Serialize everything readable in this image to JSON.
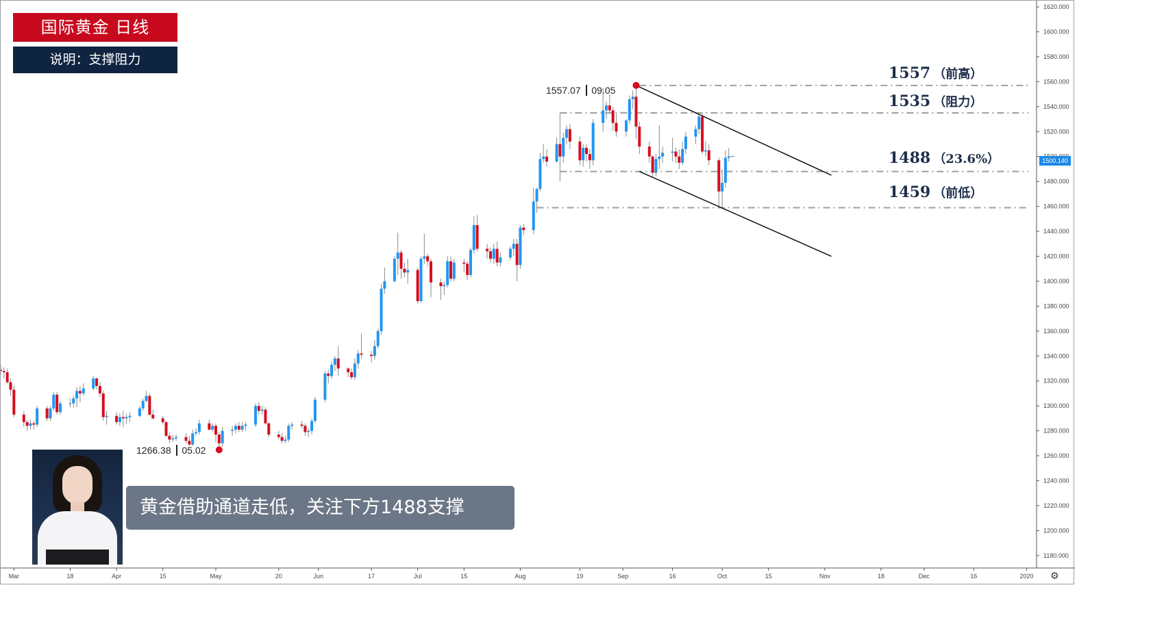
{
  "header": {
    "title": "国际黄金 日线",
    "subtitle": "说明：支撑阻力"
  },
  "levels": [
    {
      "value": 1557,
      "label": "1557",
      "tag": "（前高）"
    },
    {
      "value": 1535,
      "label": "1535",
      "tag": "（阻力）"
    },
    {
      "value": 1488,
      "label": "1488",
      "tag": "（23.6%）"
    },
    {
      "value": 1459,
      "label": "1459",
      "tag": "（前低）"
    }
  ],
  "annotations": {
    "high": {
      "price": "1557.07",
      "date": "09.05"
    },
    "low": {
      "price": "1266.38",
      "date": "05.02"
    }
  },
  "caption": "黄金借助通道走低，关注下方1488支撑",
  "current_price": "1500.140",
  "colors": {
    "up": "#2196f3",
    "down": "#d50f1f",
    "level_line": "#9e9e9e",
    "marker": "#d50f1f"
  },
  "icons": {
    "settings": "gear-icon"
  },
  "chart_data": {
    "type": "candlestick",
    "title": "国际黄金 日线",
    "ylim": [
      1170,
      1625
    ],
    "y_ticks": [
      "1620.000",
      "1600.000",
      "1580.000",
      "1560.000",
      "1540.000",
      "1520.000",
      "1500.000",
      "1480.000",
      "1460.000",
      "1440.000",
      "1420.000",
      "1400.000",
      "1380.000",
      "1360.000",
      "1340.000",
      "1320.000",
      "1300.000",
      "1280.000",
      "1260.000",
      "1240.000",
      "1220.000",
      "1200.000",
      "1180.000"
    ],
    "x_ticks": [
      "Mar",
      "18",
      "Apr",
      "15",
      "May",
      "20",
      "Jun",
      "17",
      "Jul",
      "15",
      "Aug",
      "19",
      "Sep",
      "16",
      "Oct",
      "15",
      "Nov",
      "18",
      "Dec",
      "16",
      "2020"
    ],
    "x_range": [
      "2019-02-25",
      "2020-01-04"
    ],
    "x_tick_dates": [
      "2019-03-01",
      "2019-03-18",
      "2019-04-01",
      "2019-04-15",
      "2019-05-01",
      "2019-05-20",
      "2019-06-01",
      "2019-06-17",
      "2019-07-01",
      "2019-07-15",
      "2019-08-01",
      "2019-08-19",
      "2019-09-01",
      "2019-09-16",
      "2019-10-01",
      "2019-10-15",
      "2019-11-01",
      "2019-11-18",
      "2019-12-01",
      "2019-12-16",
      "2020-01-01"
    ],
    "channel": [
      {
        "from": [
          "2019-09-05",
          1557
        ],
        "to": [
          "2019-11-03",
          1485
        ]
      },
      {
        "from": [
          "2019-09-06",
          1488
        ],
        "to": [
          "2019-11-03",
          1420
        ]
      }
    ],
    "candles": [
      [
        "2019-02-25",
        1329,
        1333,
        1325,
        1328
      ],
      [
        "2019-02-26",
        1328,
        1331,
        1322,
        1327
      ],
      [
        "2019-02-27",
        1327,
        1330,
        1318,
        1319
      ],
      [
        "2019-02-28",
        1319,
        1322,
        1308,
        1313
      ],
      [
        "2019-03-01",
        1313,
        1316,
        1291,
        1293
      ],
      [
        "2019-03-04",
        1293,
        1296,
        1283,
        1287
      ],
      [
        "2019-03-05",
        1287,
        1289,
        1280,
        1284
      ],
      [
        "2019-03-06",
        1284,
        1289,
        1281,
        1286
      ],
      [
        "2019-03-07",
        1286,
        1288,
        1281,
        1285
      ],
      [
        "2019-03-08",
        1285,
        1300,
        1283,
        1298
      ],
      [
        "2019-03-11",
        1298,
        1300,
        1288,
        1290
      ],
      [
        "2019-03-12",
        1290,
        1300,
        1288,
        1298
      ],
      [
        "2019-03-13",
        1298,
        1311,
        1296,
        1309
      ],
      [
        "2019-03-14",
        1309,
        1311,
        1293,
        1295
      ],
      [
        "2019-03-15",
        1295,
        1304,
        1293,
        1302
      ],
      [
        "2019-03-18",
        1302,
        1306,
        1299,
        1302
      ],
      [
        "2019-03-19",
        1302,
        1308,
        1299,
        1306
      ],
      [
        "2019-03-20",
        1306,
        1315,
        1299,
        1312
      ],
      [
        "2019-03-21",
        1312,
        1316,
        1303,
        1310
      ],
      [
        "2019-03-22",
        1310,
        1318,
        1308,
        1314
      ],
      [
        "2019-03-25",
        1314,
        1324,
        1312,
        1322
      ],
      [
        "2019-03-26",
        1322,
        1323,
        1313,
        1316
      ],
      [
        "2019-03-27",
        1316,
        1319,
        1307,
        1310
      ],
      [
        "2019-03-28",
        1310,
        1312,
        1288,
        1291
      ],
      [
        "2019-03-29",
        1291,
        1296,
        1285,
        1292
      ],
      [
        "2019-04-01",
        1292,
        1295,
        1285,
        1287
      ],
      [
        "2019-04-02",
        1287,
        1294,
        1284,
        1291
      ],
      [
        "2019-04-03",
        1291,
        1296,
        1283,
        1290
      ],
      [
        "2019-04-04",
        1290,
        1294,
        1286,
        1291
      ],
      [
        "2019-04-05",
        1291,
        1295,
        1287,
        1292
      ],
      [
        "2019-04-08",
        1292,
        1300,
        1291,
        1298
      ],
      [
        "2019-04-09",
        1298,
        1306,
        1296,
        1304
      ],
      [
        "2019-04-10",
        1304,
        1312,
        1303,
        1308
      ],
      [
        "2019-04-11",
        1308,
        1310,
        1292,
        1293
      ],
      [
        "2019-04-12",
        1293,
        1297,
        1289,
        1290
      ],
      [
        "2019-04-15",
        1290,
        1292,
        1285,
        1287
      ],
      [
        "2019-04-16",
        1287,
        1288,
        1275,
        1276
      ],
      [
        "2019-04-17",
        1276,
        1279,
        1270,
        1273
      ],
      [
        "2019-04-18",
        1273,
        1277,
        1271,
        1274
      ],
      [
        "2019-04-19",
        1274,
        1277,
        1272,
        1275
      ],
      [
        "2019-04-22",
        1275,
        1278,
        1270,
        1272
      ],
      [
        "2019-04-23",
        1272,
        1276,
        1268,
        1269
      ],
      [
        "2019-04-24",
        1269,
        1281,
        1268,
        1278
      ],
      [
        "2019-04-25",
        1278,
        1282,
        1276,
        1279
      ],
      [
        "2019-04-26",
        1279,
        1289,
        1277,
        1286
      ],
      [
        "2019-04-29",
        1286,
        1289,
        1280,
        1281
      ],
      [
        "2019-04-30",
        1281,
        1286,
        1279,
        1284
      ],
      [
        "2019-05-01",
        1284,
        1286,
        1271,
        1277
      ],
      [
        "2019-05-02",
        1277,
        1279,
        1266.38,
        1270
      ],
      [
        "2019-05-03",
        1270,
        1283,
        1267,
        1280
      ],
      [
        "2019-05-06",
        1280,
        1284,
        1276,
        1281
      ],
      [
        "2019-05-07",
        1281,
        1286,
        1278,
        1284
      ],
      [
        "2019-05-08",
        1284,
        1287,
        1279,
        1281
      ],
      [
        "2019-05-09",
        1281,
        1287,
        1279,
        1284
      ],
      [
        "2019-05-10",
        1284,
        1287,
        1280,
        1285
      ],
      [
        "2019-05-13",
        1285,
        1302,
        1283,
        1300
      ],
      [
        "2019-05-14",
        1300,
        1303,
        1293,
        1296
      ],
      [
        "2019-05-15",
        1296,
        1300,
        1293,
        1297
      ],
      [
        "2019-05-16",
        1297,
        1299,
        1285,
        1286
      ],
      [
        "2019-05-17",
        1286,
        1287,
        1275,
        1277
      ],
      [
        "2019-05-20",
        1277,
        1280,
        1273,
        1275
      ],
      [
        "2019-05-21",
        1275,
        1278,
        1270,
        1272
      ],
      [
        "2019-05-22",
        1272,
        1276,
        1270,
        1273
      ],
      [
        "2019-05-23",
        1273,
        1286,
        1271,
        1284
      ],
      [
        "2019-05-24",
        1284,
        1287,
        1281,
        1285
      ],
      [
        "2019-05-27",
        1285,
        1288,
        1282,
        1284
      ],
      [
        "2019-05-28",
        1284,
        1286,
        1276,
        1279
      ],
      [
        "2019-05-29",
        1279,
        1282,
        1275,
        1280
      ],
      [
        "2019-05-30",
        1280,
        1290,
        1277,
        1288
      ],
      [
        "2019-05-31",
        1288,
        1307,
        1286,
        1305
      ],
      [
        "2019-06-03",
        1305,
        1328,
        1303,
        1326
      ],
      [
        "2019-06-04",
        1326,
        1329,
        1318,
        1324
      ],
      [
        "2019-06-05",
        1324,
        1336,
        1322,
        1333
      ],
      [
        "2019-06-06",
        1333,
        1340,
        1328,
        1338
      ],
      [
        "2019-06-07",
        1338,
        1348,
        1324,
        1330
      ],
      [
        "2019-06-10",
        1330,
        1331,
        1323,
        1327
      ],
      [
        "2019-06-11",
        1327,
        1330,
        1321,
        1323
      ],
      [
        "2019-06-12",
        1323,
        1338,
        1321,
        1334
      ],
      [
        "2019-06-13",
        1334,
        1345,
        1330,
        1342
      ],
      [
        "2019-06-14",
        1342,
        1358,
        1338,
        1341
      ],
      [
        "2019-06-17",
        1341,
        1344,
        1335,
        1340
      ],
      [
        "2019-06-18",
        1340,
        1353,
        1337,
        1348
      ],
      [
        "2019-06-19",
        1348,
        1362,
        1346,
        1360
      ],
      [
        "2019-06-20",
        1360,
        1398,
        1357,
        1394
      ],
      [
        "2019-06-21",
        1394,
        1411,
        1390,
        1400
      ],
      [
        "2019-06-24",
        1400,
        1420,
        1399,
        1418
      ],
      [
        "2019-06-25",
        1418,
        1439,
        1405,
        1423
      ],
      [
        "2019-06-26",
        1423,
        1425,
        1402,
        1410
      ],
      [
        "2019-06-27",
        1410,
        1415,
        1403,
        1407
      ],
      [
        "2019-06-28",
        1407,
        1418,
        1398,
        1409
      ],
      [
        "2019-07-01",
        1409,
        1411,
        1382,
        1384
      ],
      [
        "2019-07-02",
        1384,
        1420,
        1383,
        1418
      ],
      [
        "2019-07-03",
        1418,
        1438,
        1414,
        1420
      ],
      [
        "2019-07-04",
        1420,
        1422,
        1412,
        1416
      ],
      [
        "2019-07-05",
        1416,
        1418,
        1387,
        1399
      ],
      [
        "2019-07-08",
        1399,
        1402,
        1385,
        1396
      ],
      [
        "2019-07-09",
        1396,
        1400,
        1389,
        1397
      ],
      [
        "2019-07-10",
        1397,
        1420,
        1395,
        1416
      ],
      [
        "2019-07-11",
        1416,
        1420,
        1400,
        1402
      ],
      [
        "2019-07-12",
        1402,
        1418,
        1400,
        1415
      ],
      [
        "2019-07-15",
        1415,
        1418,
        1407,
        1414
      ],
      [
        "2019-07-16",
        1414,
        1416,
        1401,
        1405
      ],
      [
        "2019-07-17",
        1405,
        1427,
        1403,
        1425
      ],
      [
        "2019-07-18",
        1425,
        1452,
        1422,
        1445
      ],
      [
        "2019-07-19",
        1445,
        1453,
        1424,
        1426
      ],
      [
        "2019-07-22",
        1426,
        1430,
        1418,
        1424
      ],
      [
        "2019-07-23",
        1424,
        1427,
        1415,
        1418
      ],
      [
        "2019-07-24",
        1418,
        1430,
        1414,
        1426
      ],
      [
        "2019-07-25",
        1426,
        1432,
        1412,
        1415
      ],
      [
        "2019-07-26",
        1415,
        1423,
        1412,
        1419
      ],
      [
        "2019-07-29",
        1419,
        1428,
        1417,
        1426
      ],
      [
        "2019-07-30",
        1426,
        1434,
        1420,
        1430
      ],
      [
        "2019-07-31",
        1430,
        1434,
        1400,
        1413
      ],
      [
        "2019-08-01",
        1413,
        1445,
        1410,
        1443
      ],
      [
        "2019-08-02",
        1443,
        1446,
        1437,
        1441
      ],
      [
        "2019-08-05",
        1441,
        1475,
        1438,
        1464
      ],
      [
        "2019-08-06",
        1464,
        1475,
        1455,
        1474
      ],
      [
        "2019-08-07",
        1474,
        1503,
        1472,
        1498
      ],
      [
        "2019-08-08",
        1498,
        1510,
        1495,
        1500
      ],
      [
        "2019-08-09",
        1500,
        1506,
        1492,
        1496
      ],
      [
        "2019-08-12",
        1496,
        1515,
        1495,
        1510
      ],
      [
        "2019-08-13",
        1510,
        1535,
        1480,
        1500
      ],
      [
        "2019-08-14",
        1500,
        1519,
        1495,
        1515
      ],
      [
        "2019-08-15",
        1515,
        1525,
        1510,
        1522
      ],
      [
        "2019-08-16",
        1522,
        1526,
        1506,
        1512
      ],
      [
        "2019-08-19",
        1512,
        1516,
        1493,
        1497
      ],
      [
        "2019-08-20",
        1497,
        1510,
        1492,
        1507
      ],
      [
        "2019-08-21",
        1507,
        1510,
        1496,
        1502
      ],
      [
        "2019-08-22",
        1502,
        1506,
        1490,
        1497
      ],
      [
        "2019-08-23",
        1497,
        1530,
        1493,
        1527
      ],
      [
        "2019-08-26",
        1527,
        1555,
        1520,
        1537
      ],
      [
        "2019-08-27",
        1537,
        1544,
        1530,
        1541
      ],
      [
        "2019-08-28",
        1541,
        1550,
        1535,
        1537
      ],
      [
        "2019-08-29",
        1537,
        1540,
        1521,
        1527
      ],
      [
        "2019-08-30",
        1527,
        1534,
        1516,
        1520
      ],
      [
        "2019-09-02",
        1520,
        1530,
        1516,
        1529
      ],
      [
        "2019-09-03",
        1529,
        1549,
        1526,
        1546
      ],
      [
        "2019-09-04",
        1546,
        1553,
        1538,
        1548
      ],
      [
        "2019-09-05",
        1548,
        1557.07,
        1514,
        1524
      ],
      [
        "2019-09-06",
        1524,
        1528,
        1502,
        1508
      ],
      [
        "2019-09-09",
        1508,
        1512,
        1495,
        1500
      ],
      [
        "2019-09-10",
        1500,
        1501,
        1484,
        1487
      ],
      [
        "2019-09-11",
        1487,
        1502,
        1484,
        1498
      ],
      [
        "2019-09-12",
        1498,
        1525,
        1490,
        1500
      ],
      [
        "2019-09-13",
        1500,
        1508,
        1495,
        1503
      ],
      [
        "2019-09-16",
        1503,
        1515,
        1496,
        1504
      ],
      [
        "2019-09-17",
        1504,
        1507,
        1495,
        1500
      ],
      [
        "2019-09-18",
        1500,
        1506,
        1490,
        1495
      ],
      [
        "2019-09-19",
        1495,
        1512,
        1493,
        1506
      ],
      [
        "2019-09-20",
        1506,
        1520,
        1502,
        1516
      ],
      [
        "2019-09-23",
        1516,
        1525,
        1510,
        1522
      ],
      [
        "2019-09-24",
        1522,
        1535,
        1518,
        1532
      ],
      [
        "2019-09-25",
        1532,
        1535,
        1502,
        1504
      ],
      [
        "2019-09-26",
        1504,
        1512,
        1500,
        1505
      ],
      [
        "2019-09-27",
        1505,
        1510,
        1493,
        1497
      ],
      [
        "2019-09-30",
        1497,
        1499,
        1460,
        1472
      ],
      [
        "2019-10-01",
        1472,
        1490,
        1459,
        1479
      ],
      [
        "2019-10-02",
        1479,
        1505,
        1475,
        1499
      ],
      [
        "2019-10-03",
        1499,
        1507,
        1496,
        1500.14
      ]
    ]
  }
}
